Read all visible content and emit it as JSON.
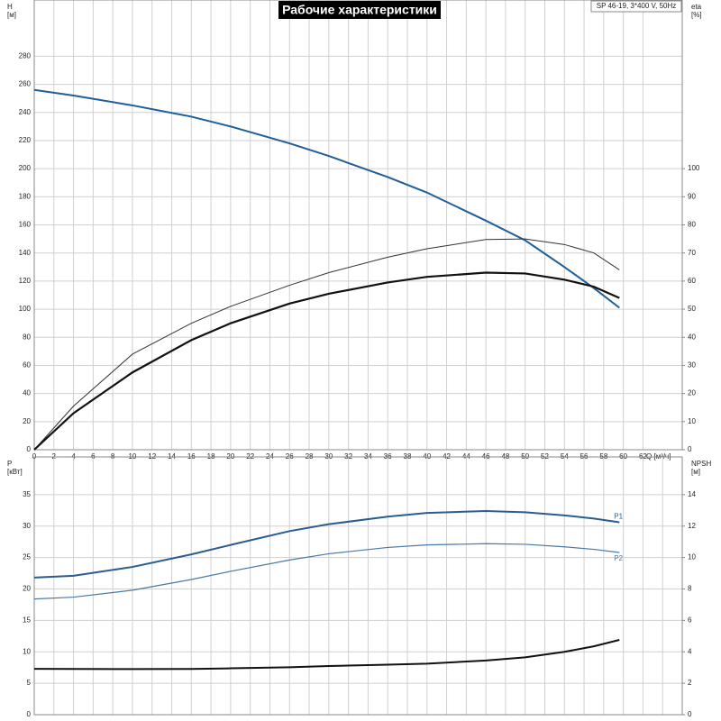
{
  "chart_data": [
    {
      "type": "line",
      "title": "Рабочие характеристики",
      "subtitle": "SP 46-19, 3*400 V, 50Hz",
      "y_label": "H",
      "y_unit": "[м]",
      "y2_label": "eta",
      "y2_unit": "[%]",
      "x_label": "Q [м³/ч]",
      "x": [
        0,
        4,
        10,
        16,
        20,
        26,
        30,
        36,
        40,
        46,
        50,
        54,
        57,
        59.6
      ],
      "xlim": [
        0,
        66
      ],
      "xticks": [
        0,
        2,
        4,
        6,
        8,
        10,
        12,
        14,
        16,
        18,
        20,
        22,
        24,
        26,
        28,
        30,
        32,
        34,
        36,
        38,
        40,
        42,
        44,
        46,
        48,
        50,
        52,
        54,
        56,
        58,
        60,
        62
      ],
      "ylim": [
        0,
        320
      ],
      "yticks": [
        0,
        20,
        40,
        60,
        80,
        100,
        120,
        140,
        160,
        180,
        200,
        220,
        240,
        260,
        280
      ],
      "y2lim": [
        0,
        160
      ],
      "y2ticks": [
        0,
        10,
        20,
        30,
        40,
        50,
        60,
        70,
        80,
        90,
        100
      ],
      "grid": true,
      "series": [
        {
          "color": "#1f5f99",
          "values": [
            256,
            252,
            245,
            237,
            230,
            218,
            209,
            194,
            183,
            163,
            149,
            130,
            115,
            101
          ]
        },
        {
          "color": "#333333",
          "axis": "y2",
          "values": [
            0,
            15.5,
            34,
            45,
            51,
            58.5,
            63,
            68.5,
            71.5,
            74.8,
            75,
            73,
            70,
            64
          ]
        },
        {
          "color": "#111111",
          "axis": "y2",
          "values": [
            0,
            13,
            27.5,
            39,
            45,
            52,
            55.5,
            59.5,
            61.5,
            63,
            62.7,
            60.5,
            58,
            54
          ]
        }
      ]
    },
    {
      "type": "line",
      "y_label": "P",
      "y_unit": "[кВт]",
      "y2_label": "NPSH",
      "y2_unit": "[м]",
      "x": [
        0,
        4,
        10,
        16,
        20,
        26,
        30,
        36,
        40,
        46,
        50,
        54,
        57,
        59.6
      ],
      "xlim": [
        0,
        66
      ],
      "xticks": [
        0,
        2,
        4,
        6,
        8,
        10,
        12,
        14,
        16,
        18,
        20,
        22,
        24,
        26,
        28,
        30,
        32,
        34,
        36,
        38,
        40,
        42,
        44,
        46,
        48,
        50,
        52,
        54,
        56,
        58,
        60,
        62,
        64
      ],
      "ylim": [
        0,
        41
      ],
      "yticks": [
        0,
        5,
        10,
        15,
        20,
        25,
        30,
        35
      ],
      "y2lim": [
        0,
        16.4
      ],
      "y2ticks": [
        0,
        2,
        4,
        6,
        8,
        10,
        12,
        14
      ],
      "grid": true,
      "series": [
        {
          "name": "P1",
          "color": "#2a5d8f",
          "values": [
            21.8,
            22.1,
            23.5,
            25.5,
            27,
            29.2,
            30.3,
            31.5,
            32.1,
            32.4,
            32.2,
            31.7,
            31.2,
            30.6
          ]
        },
        {
          "name": "P2",
          "color": "#4a78a8",
          "values": [
            18.4,
            18.7,
            19.8,
            21.5,
            22.8,
            24.6,
            25.6,
            26.6,
            27,
            27.2,
            27.1,
            26.7,
            26.3,
            25.8
          ]
        },
        {
          "color": "#111111",
          "axis": "y2",
          "values": [
            2.92,
            2.91,
            2.9,
            2.91,
            2.95,
            3.02,
            3.1,
            3.18,
            3.25,
            3.45,
            3.65,
            4.0,
            4.35,
            4.76
          ]
        }
      ]
    }
  ]
}
